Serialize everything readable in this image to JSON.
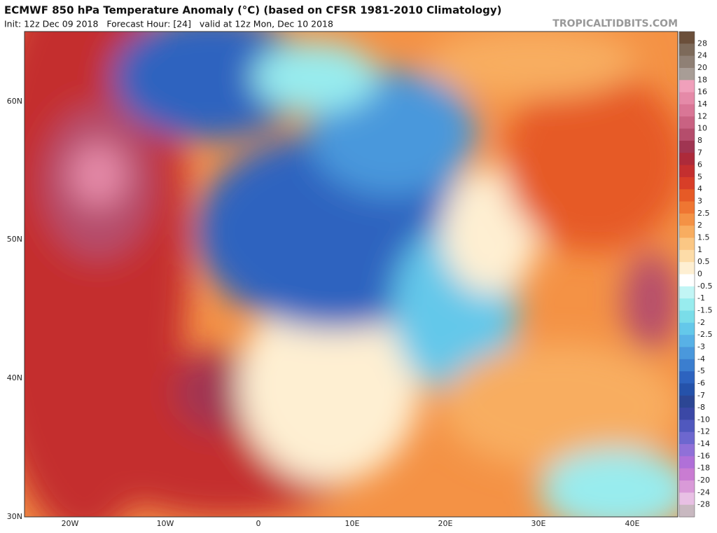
{
  "header": {
    "title": "ECMWF 850 hPa Temperature Anomaly (°C) (based on CFSR 1981-2010 Climatology)",
    "info": "Init: 12z Dec 09 2018   Forecast Hour: [24]   valid at 12z Mon, Dec 10 2018",
    "site": "TROPICALTIDBITS.COM"
  },
  "map": {
    "lat_labels": [
      "60N",
      "50N",
      "40N",
      "30N"
    ],
    "lon_labels": [
      "20W",
      "10W",
      "0",
      "10E",
      "20E",
      "30E",
      "40E"
    ]
  },
  "colorbar": {
    "labels": [
      "28",
      "24",
      "20",
      "18",
      "16",
      "14",
      "12",
      "10",
      "8",
      "7",
      "6",
      "5",
      "4",
      "3",
      "2.5",
      "2",
      "1.5",
      "1",
      "0.5",
      "0",
      "-0.5",
      "-1",
      "-1.5",
      "-2",
      "-2.5",
      "-3",
      "-4",
      "-5",
      "-6",
      "-7",
      "-8",
      "-10",
      "-12",
      "-14",
      "-16",
      "-18",
      "-20",
      "-24",
      "-28"
    ],
    "colors": [
      "#6b4f3a",
      "#7d6a5a",
      "#8f8075",
      "#a89d96",
      "#f0a0bb",
      "#e58aa8",
      "#d97696",
      "#c96282",
      "#b54d6c",
      "#a03552",
      "#ad2a3a",
      "#c42f2f",
      "#d83e28",
      "#e65a26",
      "#ef7632",
      "#f49245",
      "#f8ad60",
      "#fbc784",
      "#fddca8",
      "#feefd2",
      "#ffffff",
      "#c2f5f5",
      "#98ecee",
      "#7adde9",
      "#64c8ea",
      "#58b1e6",
      "#4a98dc",
      "#3b7ecf",
      "#2d63bf",
      "#2552aa",
      "#2c4694",
      "#3b48a6",
      "#5058be",
      "#6d67cf",
      "#9070d8",
      "#b070d8",
      "#c97cd2",
      "#d99ad8",
      "#e8c0e4",
      "#c8b8c0"
    ]
  }
}
